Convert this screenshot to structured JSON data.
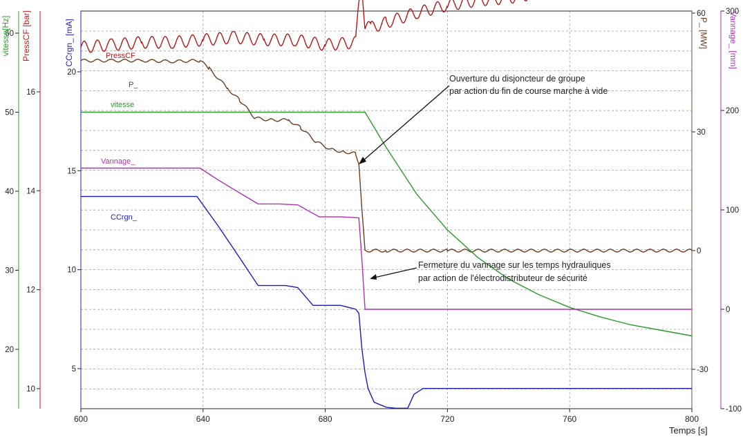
{
  "chart_data": {
    "type": "line",
    "xlabel": "Temps [s]",
    "xlim": [
      600,
      800
    ],
    "x_ticks": [
      "600",
      "640",
      "680",
      "720",
      "760",
      "800"
    ],
    "x_tick_values": [
      600,
      640,
      680,
      720,
      760,
      800
    ],
    "grid": true,
    "axes": [
      {
        "id": "vitesse",
        "label": "vitesse[Hz]",
        "color": "#2aa02a",
        "side": "left",
        "ticks": [
          "20",
          "30",
          "40",
          "50",
          "60"
        ],
        "tick_values": [
          20,
          30,
          40,
          50,
          60
        ]
      },
      {
        "id": "press",
        "label": "PressCF [bar]",
        "color": "#c02020",
        "side": "left",
        "ticks": [
          "10",
          "12",
          "14",
          "16"
        ],
        "tick_values": [
          10,
          12,
          14,
          16
        ]
      },
      {
        "id": "ccrgn",
        "label": "CCrgn_ [mA]",
        "color": "#2020c0",
        "side": "left",
        "ticks": [
          "5",
          "10",
          "15",
          "20"
        ],
        "tick_values": [
          5,
          10,
          15,
          20
        ]
      },
      {
        "id": "p",
        "label": "P_ [MW]",
        "color": "#7a4a2a",
        "side": "right",
        "ticks": [
          "-30",
          "0",
          "30",
          "60"
        ],
        "tick_values": [
          -30,
          0,
          30,
          60
        ]
      },
      {
        "id": "vannage",
        "label": "Vannage_ [mm]",
        "color": "#b030b0",
        "side": "right",
        "ticks": [
          "-100",
          "0",
          "100",
          "200",
          "300"
        ],
        "tick_values": [
          -100,
          0,
          100,
          200,
          300
        ]
      }
    ],
    "series": [
      {
        "name": "PressCF",
        "axis": "press",
        "color": "#b01818",
        "points": [
          [
            600,
            16.9
          ],
          [
            610,
            16.95
          ],
          [
            620,
            17.0
          ],
          [
            630,
            17.0
          ],
          [
            640,
            17.05
          ],
          [
            650,
            17.1
          ],
          [
            660,
            17.05
          ],
          [
            670,
            17.05
          ],
          [
            680,
            16.95
          ],
          [
            690,
            17.0
          ],
          [
            691,
            17.8
          ],
          [
            692,
            18.2
          ],
          [
            693,
            17.3
          ],
          [
            695,
            17.3
          ],
          [
            700,
            17.4
          ],
          [
            710,
            17.6
          ],
          [
            720,
            17.75
          ],
          [
            730,
            17.85
          ],
          [
            740,
            17.9
          ],
          [
            750,
            18.0
          ],
          [
            760,
            18.02
          ],
          [
            770,
            18.05
          ],
          [
            780,
            18.05
          ],
          [
            790,
            18.03
          ],
          [
            800,
            18.0
          ]
        ]
      },
      {
        "name": "P_",
        "axis": "p",
        "color": "#6b3d1e",
        "points": [
          [
            600,
            48
          ],
          [
            610,
            48
          ],
          [
            620,
            48
          ],
          [
            630,
            47.8
          ],
          [
            639,
            48
          ],
          [
            642,
            46
          ],
          [
            648,
            41
          ],
          [
            652,
            38
          ],
          [
            657,
            33.5
          ],
          [
            662,
            33
          ],
          [
            668,
            33
          ],
          [
            672,
            31
          ],
          [
            677,
            27.5
          ],
          [
            682,
            25.5
          ],
          [
            686,
            25
          ],
          [
            690,
            24.5
          ],
          [
            691,
            22
          ],
          [
            692,
            10
          ],
          [
            693,
            0
          ],
          [
            700,
            0
          ],
          [
            720,
            0
          ],
          [
            760,
            0
          ],
          [
            800,
            0
          ]
        ]
      },
      {
        "name": "vitesse",
        "axis": "vitesse",
        "color": "#2a9a2a",
        "points": [
          [
            600,
            50
          ],
          [
            640,
            50
          ],
          [
            680,
            50
          ],
          [
            693,
            50
          ],
          [
            700,
            45.5
          ],
          [
            710,
            39.6
          ],
          [
            720,
            35.1
          ],
          [
            730,
            31.6
          ],
          [
            740,
            28.9
          ],
          [
            750,
            26.9
          ],
          [
            760,
            25.3
          ],
          [
            770,
            24.1
          ],
          [
            780,
            23.1
          ],
          [
            790,
            22.4
          ],
          [
            800,
            21.7
          ]
        ]
      },
      {
        "name": "Vannage_",
        "axis": "vannage",
        "color": "#b030b0",
        "points": [
          [
            600,
            142
          ],
          [
            610,
            142
          ],
          [
            620,
            142
          ],
          [
            630,
            142
          ],
          [
            639,
            142
          ],
          [
            645,
            130
          ],
          [
            652,
            117
          ],
          [
            658,
            106
          ],
          [
            665,
            106
          ],
          [
            671,
            105
          ],
          [
            678,
            93
          ],
          [
            685,
            93
          ],
          [
            691,
            92
          ],
          [
            692,
            50
          ],
          [
            693,
            0
          ],
          [
            700,
            0
          ],
          [
            720,
            0
          ],
          [
            760,
            0
          ],
          [
            800,
            0
          ]
        ]
      },
      {
        "name": "CCrgn_",
        "axis": "ccrgn",
        "color": "#1a1ac0",
        "points": [
          [
            600,
            13.7
          ],
          [
            620,
            13.7
          ],
          [
            638,
            13.7
          ],
          [
            645,
            12.2
          ],
          [
            652,
            10.6
          ],
          [
            658,
            9.2
          ],
          [
            667,
            9.2
          ],
          [
            671,
            9.1
          ],
          [
            676,
            8.2
          ],
          [
            685,
            8.2
          ],
          [
            690,
            8.0
          ],
          [
            691,
            7.8
          ],
          [
            692,
            6.0
          ],
          [
            693,
            4.8
          ],
          [
            694,
            4.0
          ],
          [
            696,
            3.3
          ],
          [
            700,
            3.05
          ],
          [
            703,
            3.0
          ],
          [
            707,
            3.0
          ],
          [
            709,
            3.7
          ],
          [
            712,
            4.0
          ],
          [
            720,
            4.0
          ],
          [
            760,
            4.0
          ],
          [
            800,
            4.0
          ]
        ]
      }
    ],
    "annotations": [
      {
        "line1": "Ouverture du disjoncteur de groupe",
        "line2": "par action du fin de course marche à vide"
      },
      {
        "line1": "Fermeture du vannage sur les temps hydrauliques",
        "line2": "par action de l'électrodistributeur de sécurité"
      }
    ]
  }
}
